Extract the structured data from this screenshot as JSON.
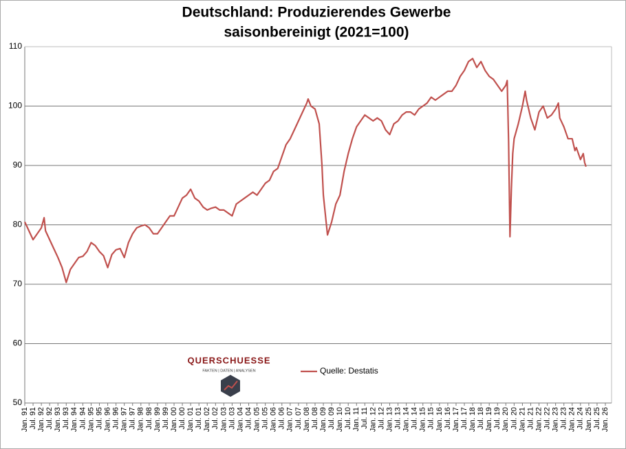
{
  "chart_data": {
    "type": "line",
    "title": "Deutschland: Produzierendes Gewerbe",
    "subtitle": "saisonbereinigt (2021=100)",
    "logo": {
      "name": "QUERSCHUESSE",
      "tagline": "FAKTEN | DATEN | ANALYSEN"
    },
    "legend": "center",
    "grid": true,
    "ylim": [
      50,
      110
    ],
    "yticks": [
      50,
      60,
      70,
      80,
      90,
      100,
      110
    ],
    "xlim": [
      "1991-01",
      "2026-01"
    ],
    "xticks": [
      {
        "value": "1991-01",
        "label": "Jan. 91"
      },
      {
        "value": "1991-07",
        "label": "Jul. 91"
      },
      {
        "value": "1992-01",
        "label": "Jan. 92"
      },
      {
        "value": "1992-07",
        "label": "Jul. 92"
      },
      {
        "value": "1993-01",
        "label": "Jan. 93"
      },
      {
        "value": "1993-07",
        "label": "Jul. 93"
      },
      {
        "value": "1994-01",
        "label": "Jan. 94"
      },
      {
        "value": "1994-07",
        "label": "Jul. 94"
      },
      {
        "value": "1995-01",
        "label": "Jan. 95"
      },
      {
        "value": "1995-07",
        "label": "Jul. 95"
      },
      {
        "value": "1996-01",
        "label": "Jan. 96"
      },
      {
        "value": "1996-07",
        "label": "Jul. 96"
      },
      {
        "value": "1997-01",
        "label": "Jan. 97"
      },
      {
        "value": "1997-07",
        "label": "Jul. 97"
      },
      {
        "value": "1998-01",
        "label": "Jan. 98"
      },
      {
        "value": "1998-07",
        "label": "Jul. 98"
      },
      {
        "value": "1999-01",
        "label": "Jan. 99"
      },
      {
        "value": "1999-07",
        "label": "Jul. 99"
      },
      {
        "value": "2000-01",
        "label": "Jan. 00"
      },
      {
        "value": "2000-07",
        "label": "Jul. 00"
      },
      {
        "value": "2001-01",
        "label": "Jan. 01"
      },
      {
        "value": "2001-07",
        "label": "Jul. 01"
      },
      {
        "value": "2002-01",
        "label": "Jan. 02"
      },
      {
        "value": "2002-07",
        "label": "Jul. 02"
      },
      {
        "value": "2003-01",
        "label": "Jan. 03"
      },
      {
        "value": "2003-07",
        "label": "Jul. 03"
      },
      {
        "value": "2004-01",
        "label": "Jan. 04"
      },
      {
        "value": "2004-07",
        "label": "Jul. 04"
      },
      {
        "value": "2005-01",
        "label": "Jan. 05"
      },
      {
        "value": "2005-07",
        "label": "Jul. 05"
      },
      {
        "value": "2006-01",
        "label": "Jan. 06"
      },
      {
        "value": "2006-07",
        "label": "Jul. 06"
      },
      {
        "value": "2007-01",
        "label": "Jan. 07"
      },
      {
        "value": "2007-07",
        "label": "Jul. 07"
      },
      {
        "value": "2008-01",
        "label": "Jan. 08"
      },
      {
        "value": "2008-07",
        "label": "Jul. 08"
      },
      {
        "value": "2009-01",
        "label": "Jan. 09"
      },
      {
        "value": "2009-07",
        "label": "Jul. 09"
      },
      {
        "value": "2010-01",
        "label": "Jan. 10"
      },
      {
        "value": "2010-07",
        "label": "Jul. 10"
      },
      {
        "value": "2011-01",
        "label": "Jan. 11"
      },
      {
        "value": "2011-07",
        "label": "Jul. 11"
      },
      {
        "value": "2012-01",
        "label": "Jan. 12"
      },
      {
        "value": "2012-07",
        "label": "Jul. 12"
      },
      {
        "value": "2013-01",
        "label": "Jan. 13"
      },
      {
        "value": "2013-07",
        "label": "Jul. 13"
      },
      {
        "value": "2014-01",
        "label": "Jan. 14"
      },
      {
        "value": "2014-07",
        "label": "Jul. 14"
      },
      {
        "value": "2015-01",
        "label": "Jan. 15"
      },
      {
        "value": "2015-07",
        "label": "Jul. 15"
      },
      {
        "value": "2016-01",
        "label": "Jan. 16"
      },
      {
        "value": "2016-07",
        "label": "Jul. 16"
      },
      {
        "value": "2017-01",
        "label": "Jan. 17"
      },
      {
        "value": "2017-07",
        "label": "Jul. 17"
      },
      {
        "value": "2018-01",
        "label": "Jan. 18"
      },
      {
        "value": "2018-07",
        "label": "Jul. 18"
      },
      {
        "value": "2019-01",
        "label": "Jan. 19"
      },
      {
        "value": "2019-07",
        "label": "Jul. 19"
      },
      {
        "value": "2020-01",
        "label": "Jan. 20"
      },
      {
        "value": "2020-07",
        "label": "Jul. 20"
      },
      {
        "value": "2021-01",
        "label": "Jan. 21"
      },
      {
        "value": "2021-07",
        "label": "Jul. 21"
      },
      {
        "value": "2022-01",
        "label": "Jan. 22"
      },
      {
        "value": "2022-07",
        "label": "Jul. 22"
      },
      {
        "value": "2023-01",
        "label": "Jan. 23"
      },
      {
        "value": "2023-07",
        "label": "Jul. 23"
      },
      {
        "value": "2024-01",
        "label": "Jan. 24"
      },
      {
        "value": "2024-07",
        "label": "Jul. 24"
      },
      {
        "value": "2025-01",
        "label": "Jan. 25"
      },
      {
        "value": "2025-07",
        "label": "Jul. 25"
      },
      {
        "value": "2026-01",
        "label": "Jan. 26"
      }
    ],
    "x": [
      "1991-01",
      "1991-04",
      "1991-07",
      "1991-10",
      "1992-01",
      "1992-03",
      "1992-04",
      "1992-07",
      "1992-10",
      "1993-01",
      "1993-04",
      "1993-07",
      "1993-10",
      "1994-01",
      "1994-04",
      "1994-07",
      "1994-10",
      "1995-01",
      "1995-04",
      "1995-07",
      "1995-10",
      "1996-01",
      "1996-04",
      "1996-07",
      "1996-10",
      "1997-01",
      "1997-04",
      "1997-07",
      "1997-10",
      "1998-01",
      "1998-04",
      "1998-07",
      "1998-10",
      "1999-01",
      "1999-04",
      "1999-07",
      "1999-10",
      "2000-01",
      "2000-04",
      "2000-07",
      "2000-10",
      "2001-01",
      "2001-04",
      "2001-07",
      "2001-10",
      "2002-01",
      "2002-04",
      "2002-07",
      "2002-10",
      "2003-01",
      "2003-04",
      "2003-07",
      "2003-10",
      "2004-01",
      "2004-04",
      "2004-07",
      "2004-10",
      "2005-01",
      "2005-04",
      "2005-07",
      "2005-10",
      "2006-01",
      "2006-04",
      "2006-07",
      "2006-10",
      "2007-01",
      "2007-04",
      "2007-07",
      "2007-10",
      "2008-01",
      "2008-02",
      "2008-04",
      "2008-07",
      "2008-10",
      "2008-12",
      "2009-01",
      "2009-03",
      "2009-04",
      "2009-07",
      "2009-10",
      "2010-01",
      "2010-04",
      "2010-07",
      "2010-10",
      "2011-01",
      "2011-04",
      "2011-07",
      "2011-10",
      "2012-01",
      "2012-04",
      "2012-07",
      "2012-10",
      "2013-01",
      "2013-04",
      "2013-07",
      "2013-10",
      "2014-01",
      "2014-04",
      "2014-07",
      "2014-10",
      "2015-01",
      "2015-04",
      "2015-07",
      "2015-10",
      "2016-01",
      "2016-04",
      "2016-07",
      "2016-10",
      "2017-01",
      "2017-04",
      "2017-07",
      "2017-10",
      "2018-01",
      "2018-04",
      "2018-07",
      "2018-10",
      "2019-01",
      "2019-04",
      "2019-07",
      "2019-10",
      "2020-01",
      "2020-02",
      "2020-03",
      "2020-04",
      "2020-05",
      "2020-06",
      "2020-07",
      "2020-10",
      "2021-01",
      "2021-03",
      "2021-04",
      "2021-07",
      "2021-10",
      "2022-01",
      "2022-04",
      "2022-07",
      "2022-10",
      "2023-01",
      "2023-03",
      "2023-04",
      "2023-07",
      "2023-10",
      "2024-01",
      "2024-03",
      "2024-04",
      "2024-07",
      "2024-09",
      "2024-10",
      "2024-11"
    ],
    "series": [
      {
        "name": "Quelle: Destatis",
        "color": "#c0504d",
        "values": [
          80.5,
          79,
          77.5,
          78.5,
          79.5,
          81.2,
          79,
          77.5,
          76,
          74.5,
          72.8,
          70.3,
          72.5,
          73.5,
          74.5,
          74.7,
          75.5,
          77,
          76.5,
          75.5,
          74.8,
          72.8,
          75,
          75.8,
          76,
          74.5,
          77,
          78.5,
          79.5,
          79.8,
          80,
          79.5,
          78.5,
          78.5,
          79.5,
          80.5,
          81.5,
          81.5,
          83,
          84.5,
          85,
          86,
          84.5,
          84,
          83,
          82.5,
          82.8,
          83,
          82.5,
          82.5,
          82,
          81.5,
          83.5,
          84,
          84.5,
          85,
          85.5,
          85,
          86,
          87,
          87.5,
          89,
          89.5,
          91.5,
          93.5,
          94.5,
          96,
          97.5,
          99,
          100.5,
          101.2,
          100,
          99.5,
          97,
          90,
          85,
          80.5,
          78.3,
          80.5,
          83.5,
          85,
          89,
          92,
          94.5,
          96.5,
          97.5,
          98.5,
          98,
          97.5,
          98,
          97.5,
          96,
          95.2,
          97,
          97.5,
          98.5,
          99,
          99,
          98.5,
          99.5,
          100,
          100.5,
          101.5,
          101,
          101.5,
          102,
          102.5,
          102.5,
          103.5,
          105,
          106,
          107.5,
          108,
          106.5,
          107.5,
          106,
          105,
          104.5,
          103.5,
          102.5,
          103.5,
          104.3,
          94,
          78,
          86,
          92,
          94.5,
          97,
          100,
          102.5,
          101,
          98,
          96,
          99,
          100,
          98,
          98.5,
          99.5,
          100.5,
          98,
          96.5,
          94.5,
          94.5,
          92.5,
          93,
          91,
          92,
          90.5,
          89.8
        ]
      }
    ]
  }
}
